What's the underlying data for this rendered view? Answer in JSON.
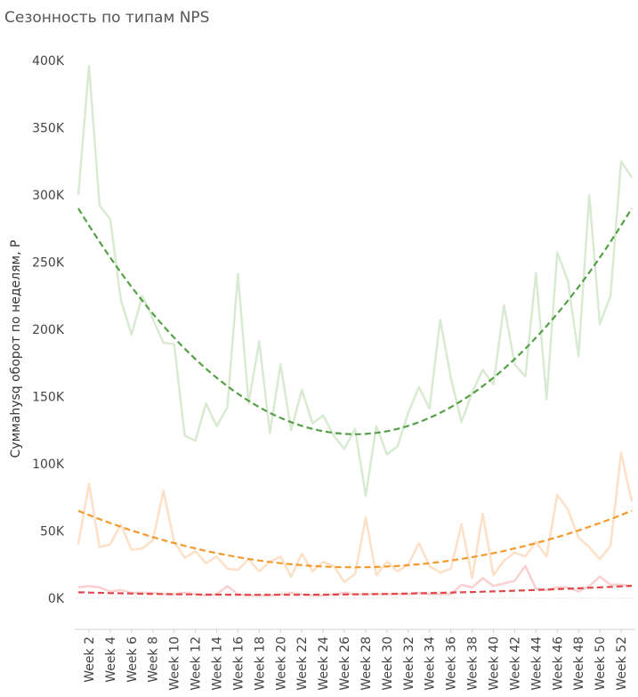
{
  "chart_data": {
    "type": "line",
    "title": "Сезонность по типам NPS",
    "ylabel": "Суммаhysq оборот по неделям, Р",
    "xlabel": "",
    "ylim": [
      0,
      400000
    ],
    "yticks": [
      0,
      50000,
      100000,
      150000,
      200000,
      250000,
      300000,
      350000,
      400000
    ],
    "ytick_labels": [
      "0K",
      "50K",
      "100K",
      "150K",
      "200K",
      "250K",
      "300K",
      "350K",
      "400K"
    ],
    "x": [
      1,
      2,
      3,
      4,
      5,
      6,
      7,
      8,
      9,
      10,
      11,
      12,
      13,
      14,
      15,
      16,
      17,
      18,
      19,
      20,
      21,
      22,
      23,
      24,
      25,
      26,
      27,
      28,
      29,
      30,
      31,
      32,
      33,
      34,
      35,
      36,
      37,
      38,
      39,
      40,
      41,
      42,
      43,
      44,
      45,
      46,
      47,
      48,
      49,
      50,
      51,
      52,
      53
    ],
    "x_tick_labels": [
      "Week 2",
      "Week 4",
      "Week 6",
      "Week 8",
      "Week 10",
      "Week 12",
      "Week 14",
      "Week 16",
      "Week 18",
      "Week 20",
      "Week 22",
      "Week 24",
      "Week 26",
      "Week 28",
      "Week 30",
      "Week 32",
      "Week 34",
      "Week 36",
      "Week 38",
      "Week 40",
      "Week 42",
      "Week 44",
      "Week 46",
      "Week 48",
      "Week 50",
      "Week 52"
    ],
    "x_tick_positions": [
      2,
      4,
      6,
      8,
      10,
      12,
      14,
      16,
      18,
      20,
      22,
      24,
      26,
      28,
      30,
      32,
      34,
      36,
      38,
      40,
      42,
      44,
      46,
      48,
      50,
      52
    ],
    "grid": false,
    "legend": "none",
    "series": [
      {
        "color": "#d9ead3",
        "values": [
          300000,
          396000,
          292000,
          282000,
          222000,
          196000,
          225000,
          208000,
          190000,
          189000,
          121000,
          117000,
          145000,
          128000,
          142000,
          241000,
          145000,
          191000,
          123000,
          174000,
          125000,
          155000,
          130000,
          136000,
          121000,
          111000,
          126000,
          76000,
          128000,
          107000,
          113000,
          138000,
          157000,
          141000,
          207000,
          164000,
          131000,
          153000,
          170000,
          159000,
          218000,
          174000,
          165000,
          242000,
          148000,
          257000,
          236000,
          180000,
          300000,
          204000,
          225000,
          325000,
          313000
        ]
      },
      {
        "color": "#fde0c8",
        "values": [
          40000,
          85000,
          38000,
          40000,
          55000,
          36000,
          37000,
          43000,
          80000,
          42000,
          30000,
          35000,
          26000,
          31000,
          22000,
          21000,
          29000,
          20000,
          27000,
          31000,
          16000,
          33000,
          20000,
          27000,
          24000,
          12000,
          18000,
          60000,
          17000,
          27000,
          20000,
          25000,
          41000,
          24000,
          19000,
          22000,
          55000,
          15000,
          63000,
          17000,
          28000,
          34000,
          31000,
          42000,
          31000,
          77000,
          66000,
          45000,
          38000,
          29000,
          39000,
          108000,
          72000
        ]
      },
      {
        "color": "#f8d0d0",
        "values": [
          8000,
          9000,
          8000,
          5000,
          6000,
          4000,
          4000,
          4000,
          3000,
          3000,
          4000,
          3000,
          2000,
          3000,
          9000,
          3000,
          2000,
          2000,
          2000,
          3000,
          4000,
          3000,
          2000,
          2000,
          3000,
          4000,
          3000,
          3000,
          3000,
          3000,
          3000,
          3000,
          4000,
          3000,
          3000,
          3000,
          10000,
          8000,
          15000,
          9000,
          11000,
          13000,
          24000,
          7000,
          6000,
          8000,
          8000,
          5000,
          9000,
          16000,
          10000,
          10000,
          9000
        ]
      }
    ],
    "trend_lines": [
      {
        "color": "#55a046",
        "style": "dashed",
        "coeffs": [
          122000,
          27,
          0.2485
        ]
      },
      {
        "color": "#f39a2c",
        "style": "dashed",
        "coeffs": [
          23000,
          27,
          0.0622
        ]
      },
      {
        "color": "#e0484c",
        "style": "dashed",
        "coeffs": [
          2500,
          19,
          0.0058
        ]
      }
    ]
  }
}
